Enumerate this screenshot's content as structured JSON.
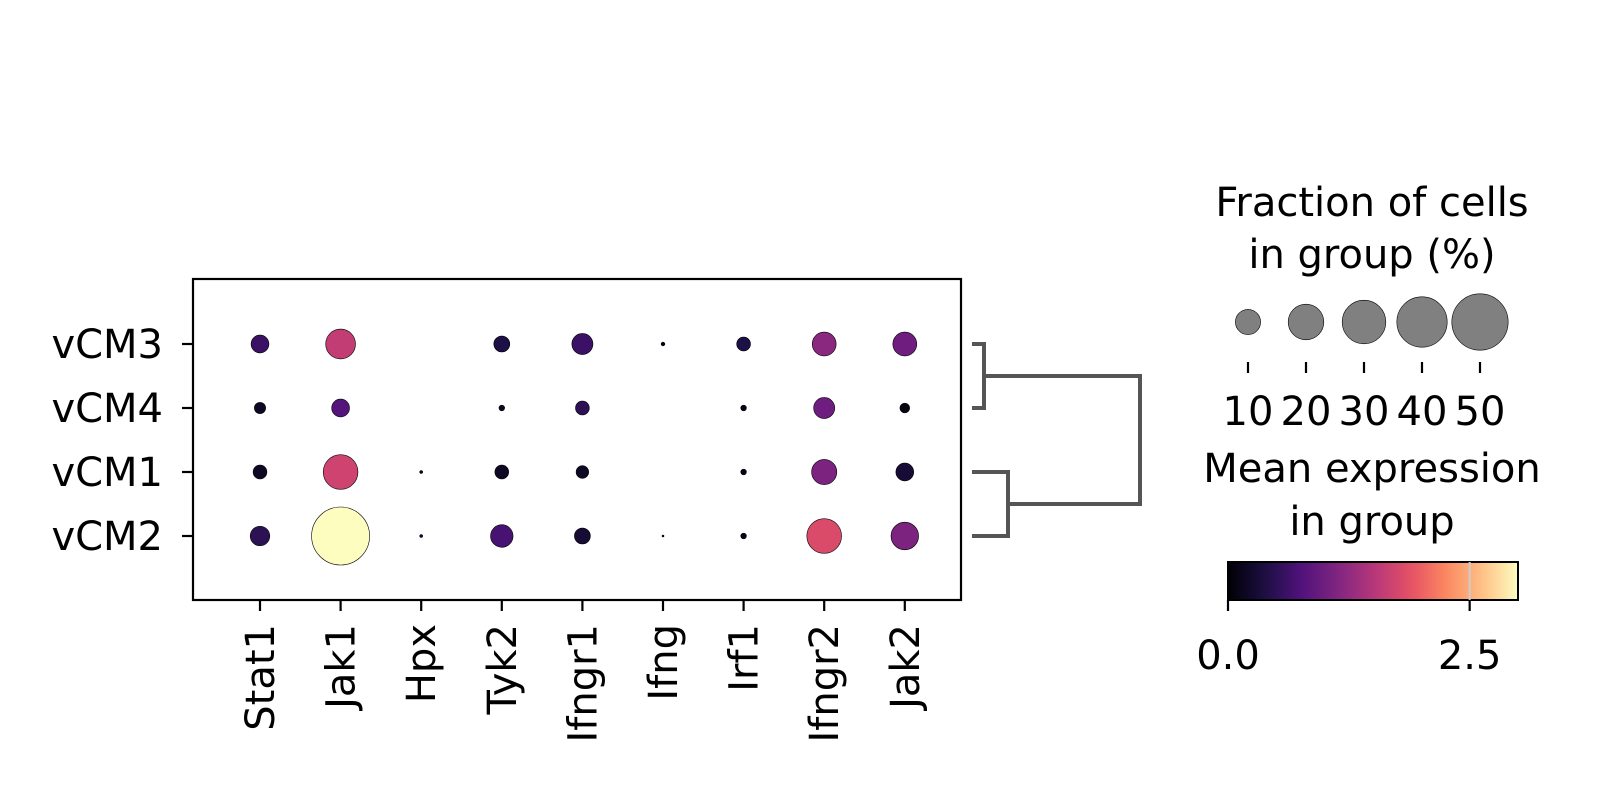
{
  "chart_data": {
    "type": "dotplot",
    "genes": [
      "Stat1",
      "Jak1",
      "Hpx",
      "Tyk2",
      "Ifngr1",
      "Ifng",
      "Irf1",
      "Ifngr2",
      "Jak2"
    ],
    "groups": [
      "vCM3",
      "vCM4",
      "vCM1",
      "vCM2"
    ],
    "fraction_pct": [
      [
        5,
        14,
        0,
        4,
        7,
        0.3,
        3,
        9,
        9
      ],
      [
        2,
        5,
        0,
        0.5,
        3,
        0,
        0.5,
        7,
        1.5
      ],
      [
        3,
        19,
        0.2,
        3,
        2.5,
        0,
        0.5,
        10,
        5
      ],
      [
        6,
        53,
        0.2,
        8,
        4,
        0.1,
        0.5,
        19,
        12
      ]
    ],
    "mean_expression": [
      [
        0.6,
        1.6,
        0,
        0.4,
        0.6,
        0.1,
        0.4,
        1.2,
        1.0
      ],
      [
        0.2,
        0.8,
        0,
        0.2,
        0.5,
        0,
        0.1,
        1.0,
        0.1
      ],
      [
        0.2,
        1.7,
        0.1,
        0.2,
        0.2,
        0,
        0.1,
        1.1,
        0.3
      ],
      [
        0.5,
        3.0,
        0.2,
        0.7,
        0.3,
        0.1,
        0.1,
        1.8,
        1.1
      ]
    ],
    "colormap": "magma",
    "color_range": [
      0,
      3.0
    ],
    "colorbar_ticks": [
      "0.0",
      "2.5"
    ],
    "size_legend": {
      "title_line1": "Fraction of cells",
      "title_line2": "in group (%)",
      "values": [
        10,
        20,
        30,
        40,
        50
      ],
      "labels": [
        "10",
        "20",
        "30",
        "40",
        "50"
      ],
      "marker_color": "#808080"
    },
    "color_legend": {
      "title_line1": "Mean expression",
      "title_line2": "in group"
    },
    "dendrogram": {
      "merges": [
        [
          "vCM3",
          "vCM4"
        ],
        [
          "vCM1",
          "vCM2"
        ],
        [
          "(vCM3,vCM4)",
          "(vCM1,vCM2)"
        ]
      ],
      "line_color": "#555555"
    },
    "grid": false
  }
}
